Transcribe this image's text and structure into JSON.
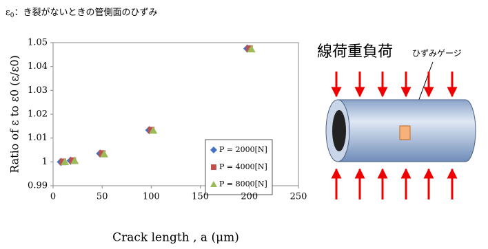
{
  "note": {
    "symbol": "ε",
    "subscript": "0",
    "text": "：き裂がないときの管側面のひずみ"
  },
  "chart_data": {
    "type": "scatter",
    "xlabel": "Crack length , a (μm)",
    "ylabel": "Ratio of ε to ε0 (ε/ε0)",
    "xlim": [
      0,
      250
    ],
    "xticks": [
      0,
      50,
      100,
      150,
      200,
      250
    ],
    "ylim": [
      0.99,
      1.05
    ],
    "yticks": [
      {
        "value": 0.99,
        "label": "0.99"
      },
      1,
      1.01,
      1.02,
      1.03,
      1.04,
      1.05
    ],
    "legend": "lower right",
    "series": [
      {
        "name": "P = 2000[N]",
        "color": "#4472c4",
        "marker": "diamond",
        "x": [
          8,
          18,
          48,
          98,
          198
        ],
        "values": [
          1.0,
          1.0005,
          1.0035,
          1.0133,
          1.0475
        ]
      },
      {
        "name": "P = 4000[N]",
        "color": "#c0504d",
        "marker": "square",
        "x": [
          10,
          20,
          50,
          100,
          200
        ],
        "values": [
          1.0,
          1.0005,
          1.0035,
          1.0133,
          1.0475
        ]
      },
      {
        "name": "P = 8000[N]",
        "color": "#9bbb59",
        "marker": "triangle",
        "x": [
          12,
          22,
          52,
          102,
          202
        ],
        "values": [
          1.0,
          1.0005,
          1.0033,
          1.0132,
          1.0473
        ]
      }
    ]
  },
  "diagram": {
    "title": "線荷重負荷",
    "gauge_label": "ひずみゲージ"
  }
}
